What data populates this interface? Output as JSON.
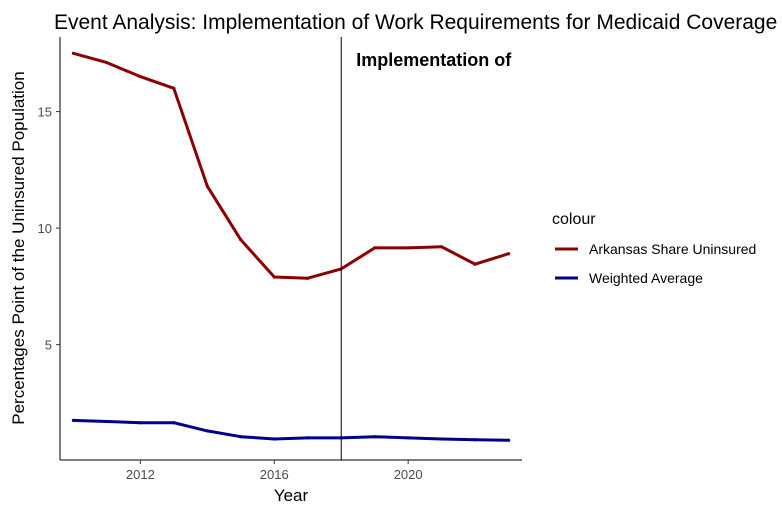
{
  "chart_data": {
    "type": "line",
    "title": "Event Analysis: Implementation of Work Requirements for Medicaid Coverage",
    "xlabel": "Year",
    "ylabel": "Percentages Point of the Uninsured Population",
    "xlim": [
      2009.6,
      2023.4
    ],
    "ylim": [
      0.05,
      18.2
    ],
    "x_ticks": [
      2012,
      2016,
      2020
    ],
    "y_ticks": [
      5,
      10,
      15
    ],
    "grid": false,
    "x": [
      2010,
      2011,
      2012,
      2013,
      2014,
      2015,
      2016,
      2017,
      2018,
      2019,
      2020,
      2021,
      2022,
      2023
    ],
    "series": [
      {
        "name": "Arkansas Share Uninsured",
        "color": "#8b0000",
        "values": [
          17.5,
          17.1,
          16.5,
          16.0,
          11.8,
          9.5,
          7.9,
          7.85,
          8.25,
          9.15,
          9.15,
          9.2,
          8.45,
          8.9
        ]
      },
      {
        "name": "Weighted Average",
        "color": "#00008b",
        "values": [
          1.75,
          1.7,
          1.65,
          1.65,
          1.3,
          1.05,
          0.95,
          1.0,
          1.0,
          1.05,
          1.0,
          0.95,
          0.92,
          0.9
        ]
      }
    ],
    "event_line": {
      "x": 2018,
      "label": "Implementation of"
    },
    "legend": {
      "title": "colour",
      "position": "right"
    }
  }
}
